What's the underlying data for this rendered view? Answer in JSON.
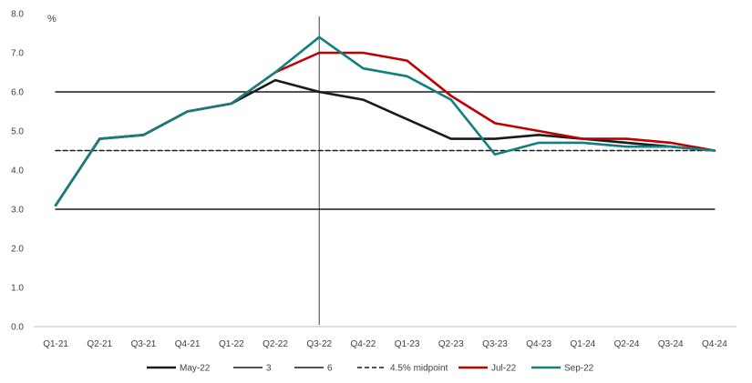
{
  "chart_data": {
    "type": "line",
    "ylabel": "%",
    "ylim": [
      0,
      8
    ],
    "yticks": [
      "0.0",
      "1.0",
      "2.0",
      "3.0",
      "4.0",
      "5.0",
      "6.0",
      "7.0",
      "8.0"
    ],
    "categories": [
      "Q1-21",
      "Q2-21",
      "Q3-21",
      "Q4-21",
      "Q1-22",
      "Q2-22",
      "Q3-22",
      "Q4-22",
      "Q1-23",
      "Q2-23",
      "Q3-23",
      "Q4-23",
      "Q1-24",
      "Q2-24",
      "Q3-24",
      "Q4-24"
    ],
    "grid": false,
    "legend_position": "bottom",
    "vertical_marker_category": "Q3-22",
    "series": [
      {
        "name": "May-22",
        "color": "#1a1a1a",
        "style": "solid",
        "values": [
          3.1,
          4.8,
          4.9,
          5.5,
          5.7,
          6.3,
          6.0,
          5.8,
          5.3,
          4.8,
          4.8,
          4.9,
          4.8,
          4.7,
          4.6,
          4.5
        ]
      },
      {
        "name": "3",
        "color": "#1a1a1a",
        "style": "solid",
        "values": [
          3,
          3,
          3,
          3,
          3,
          3,
          3,
          3,
          3,
          3,
          3,
          3,
          3,
          3,
          3,
          3
        ]
      },
      {
        "name": "6",
        "color": "#1a1a1a",
        "style": "solid",
        "values": [
          6,
          6,
          6,
          6,
          6,
          6,
          6,
          6,
          6,
          6,
          6,
          6,
          6,
          6,
          6,
          6
        ]
      },
      {
        "name": "4.5% midpoint",
        "color": "#1a1a1a",
        "style": "dashed",
        "values": [
          4.5,
          4.5,
          4.5,
          4.5,
          4.5,
          4.5,
          4.5,
          4.5,
          4.5,
          4.5,
          4.5,
          4.5,
          4.5,
          4.5,
          4.5,
          4.5
        ]
      },
      {
        "name": "Jul-22",
        "color": "#c00000",
        "style": "solid",
        "values": [
          3.1,
          4.8,
          4.9,
          5.5,
          5.7,
          6.5,
          7.0,
          7.0,
          6.8,
          5.9,
          5.2,
          5.0,
          4.8,
          4.8,
          4.7,
          4.5
        ]
      },
      {
        "name": "Sep-22",
        "color": "#127f7f",
        "style": "solid",
        "values": [
          3.1,
          4.8,
          4.9,
          5.5,
          5.7,
          6.5,
          7.4,
          6.6,
          6.4,
          5.8,
          4.4,
          4.7,
          4.7,
          4.6,
          4.6,
          4.5
        ]
      }
    ]
  }
}
